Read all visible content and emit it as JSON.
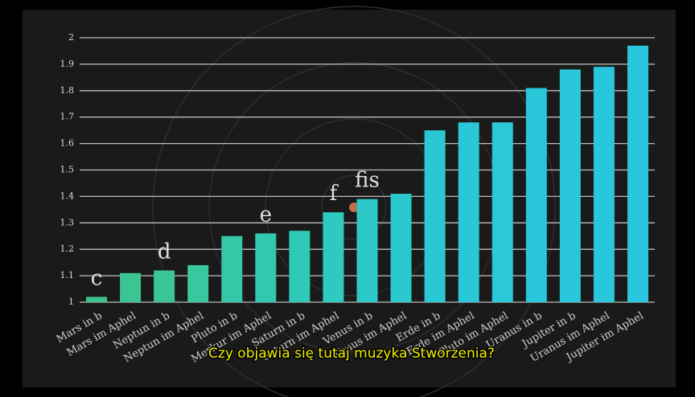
{
  "chart_data": {
    "type": "bar",
    "caption": "Czy objawia się tutaj muzyka Stworzenia?",
    "categories": [
      "Mars in b",
      "Mars im Aphel",
      "Neptun in b",
      "Neptun im Aphel",
      "Pluto in b",
      "Merkur im Aphel",
      "Saturn in b",
      "Saturn im Aphel",
      "Venus in b",
      "Venus im Aphel",
      "Erde in b",
      "Erde im Aphel",
      "Pluto im Aphel",
      "Uranus in b",
      "Jupiter in b",
      "Uranus im Aphel",
      "Jupiter im Aphel"
    ],
    "values": [
      1.02,
      1.11,
      1.12,
      1.14,
      1.25,
      1.26,
      1.27,
      1.34,
      1.39,
      1.41,
      1.65,
      1.68,
      1.68,
      1.81,
      1.88,
      1.89,
      1.97
    ],
    "colors": [
      "#3cc28c",
      "#3cc592",
      "#3cc698",
      "#38c79f",
      "#34c8a8",
      "#32c8b0",
      "#30c9b8",
      "#2ec9c0",
      "#2cc9c8",
      "#2bc9cf",
      "#2ac8d4",
      "#2ac8d6",
      "#2ac8d8",
      "#2ac7da",
      "#2ac7db",
      "#2ac6dc",
      "#2ac6dd"
    ],
    "annotations": [
      "c",
      "d",
      "e",
      "f",
      "fis"
    ],
    "ylim": [
      1,
      2
    ],
    "yticks": [
      1,
      1.1,
      1.2,
      1.3,
      1.4,
      1.5,
      1.6,
      1.7,
      1.8,
      1.9,
      2
    ],
    "grid": true
  }
}
